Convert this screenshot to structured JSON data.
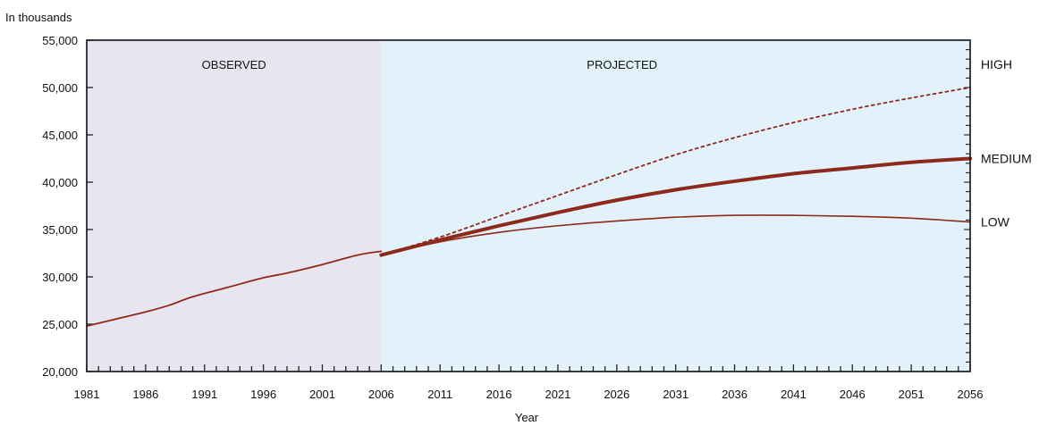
{
  "chart_data": {
    "type": "line",
    "ylabel": "In thousands",
    "xlabel": "Year",
    "xlim": [
      1981,
      2056
    ],
    "ylim": [
      20000,
      55000
    ],
    "x_ticks": [
      "1981",
      "1986",
      "1991",
      "1996",
      "2001",
      "2006",
      "2011",
      "2016",
      "2021",
      "2026",
      "2031",
      "2036",
      "2041",
      "2046",
      "2051",
      "2056"
    ],
    "y_ticks": [
      "20,000",
      "25,000",
      "30,000",
      "35,000",
      "40,000",
      "45,000",
      "50,000",
      "55,000"
    ],
    "regions": [
      {
        "label": "OBSERVED",
        "from": 1981,
        "to": 2006,
        "color": "#e9e5f0"
      },
      {
        "label": "PROJECTED",
        "from": 2006,
        "to": 2056,
        "color": "#e3f1fa"
      }
    ],
    "series": [
      {
        "name": "OBSERVED",
        "style": "solid",
        "width": "normal",
        "color": "#8e2a1c",
        "x": [
          1981,
          1983,
          1986,
          1988,
          1990,
          1993,
          1996,
          1998,
          2001,
          2004,
          2006
        ],
        "y": [
          24800,
          25400,
          26300,
          27000,
          27900,
          28900,
          29900,
          30400,
          31300,
          32300,
          32700
        ]
      },
      {
        "name": "HIGH",
        "style": "dotted",
        "width": "normal",
        "color": "#8e2a1c",
        "x": [
          2006,
          2011,
          2016,
          2021,
          2026,
          2031,
          2036,
          2041,
          2046,
          2051,
          2056
        ],
        "y": [
          32300,
          34200,
          36400,
          38600,
          40800,
          42900,
          44700,
          46300,
          47700,
          48900,
          50000
        ]
      },
      {
        "name": "MEDIUM",
        "style": "solid",
        "width": "thick",
        "color": "#8e2a1c",
        "x": [
          2006,
          2011,
          2016,
          2021,
          2026,
          2031,
          2036,
          2041,
          2046,
          2051,
          2056
        ],
        "y": [
          32300,
          33900,
          35400,
          36800,
          38100,
          39200,
          40100,
          40900,
          41500,
          42100,
          42500
        ]
      },
      {
        "name": "LOW",
        "style": "solid",
        "width": "thin",
        "color": "#8e2a1c",
        "x": [
          2006,
          2011,
          2016,
          2021,
          2026,
          2031,
          2036,
          2041,
          2046,
          2051,
          2056
        ],
        "y": [
          32300,
          33700,
          34700,
          35400,
          35900,
          36300,
          36500,
          36500,
          36400,
          36200,
          35800
        ]
      }
    ],
    "series_labels": [
      "HIGH",
      "MEDIUM",
      "LOW"
    ]
  }
}
